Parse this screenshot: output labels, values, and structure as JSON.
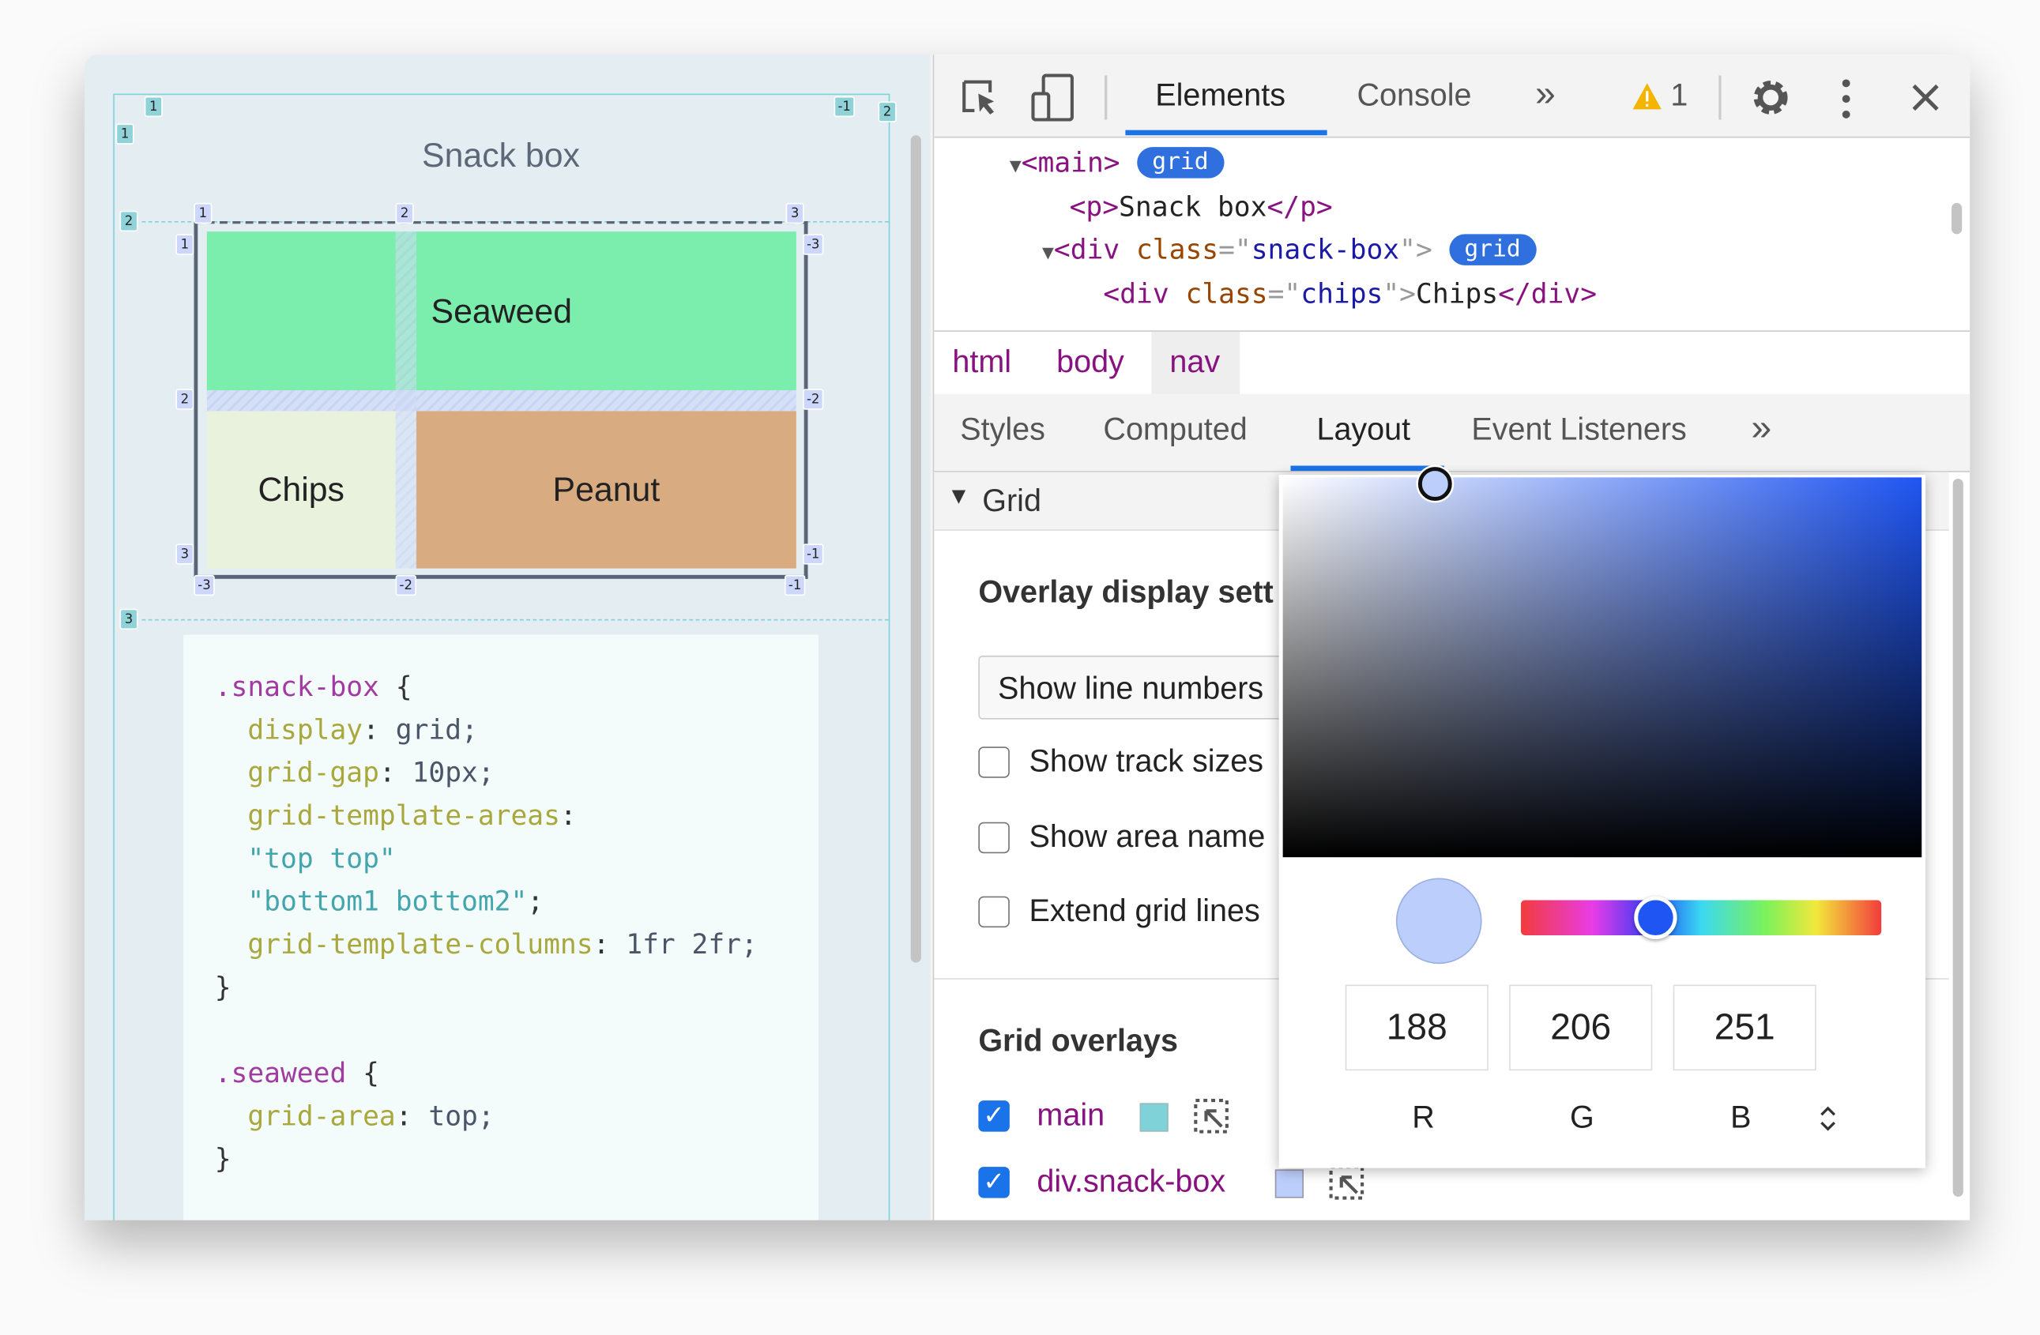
{
  "page": {
    "title": "Snack box",
    "cells": {
      "seaweed": "Seaweed",
      "chips": "Chips",
      "peanut": "Peanut"
    },
    "main_grid_labels": {
      "col_top": [
        "1",
        "-1",
        "2"
      ],
      "row_left": [
        "1",
        "2",
        "3"
      ]
    },
    "snack_grid_labels": {
      "col_top": [
        "1",
        "2",
        "3"
      ],
      "col_bottom": [
        "-3",
        "-2",
        "-1"
      ],
      "row_left": [
        "1",
        "2",
        "3"
      ],
      "row_right": [
        "-3",
        "-2",
        "-1"
      ]
    },
    "code": {
      "l1_sel": ".snack-box",
      "l1_brace": " {",
      "l2_prop": "display",
      "l2_val": " grid;",
      "l3_prop": "grid-gap",
      "l3_val": " 10px;",
      "l4_prop": "grid-template-areas",
      "l5_str": "\"top top\"",
      "l6_str": "\"bottom1 bottom2\"",
      "l6_semi": ";",
      "l7_prop": "grid-template-columns",
      "l7_val": " 1fr 2fr;",
      "close": "}",
      "l10_sel": ".seaweed",
      "l10_brace": " {",
      "l11_prop": "grid-area",
      "l11_val": " top;"
    },
    "colors": {
      "seaweed": "#7beeae",
      "chips": "#e9f2dc",
      "peanut": "#d8ac80",
      "main_overlay": "#7fd3d8",
      "snack_overlay": "#bccefb"
    }
  },
  "devtools": {
    "tabs": [
      "Elements",
      "Console"
    ],
    "active_tab": "Elements",
    "more_tabs": "»",
    "warning_count": "1",
    "dom": {
      "main_tag": "<main>",
      "grid_badge": "grid",
      "p_open": "<p>",
      "p_text": "Snack box",
      "p_close": "</p>",
      "div_open": "<div",
      "class_attr": " class",
      "eq": "=\"",
      "snack_class": "snack-box",
      "close_q": "\">",
      "chips_class": "chips",
      "chips_text": "Chips",
      "div_close": "</div>"
    },
    "breadcrumbs": [
      "html",
      "body",
      "nav"
    ],
    "subtabs": [
      "Styles",
      "Computed",
      "Layout",
      "Event Listeners"
    ],
    "active_subtab": "Layout",
    "layout": {
      "section": "Grid",
      "overlay_heading": "Overlay display sett",
      "select_value": "Show line numbers",
      "options": [
        {
          "label": "Show track sizes",
          "checked": false
        },
        {
          "label": "Show area name",
          "checked": false
        },
        {
          "label": "Extend grid lines",
          "checked": false
        }
      ],
      "overlays_heading": "Grid overlays",
      "overlays": [
        {
          "label": "main",
          "checked": true,
          "color": "#7fd3d8"
        },
        {
          "label": "div.snack-box",
          "checked": true,
          "color": "#bccefb"
        }
      ]
    },
    "color_picker": {
      "r": "188",
      "g": "206",
      "b": "251",
      "r_label": "R",
      "g_label": "G",
      "b_label": "B",
      "hue_color": "#1f55f2",
      "current_color": "#bccefb"
    }
  }
}
